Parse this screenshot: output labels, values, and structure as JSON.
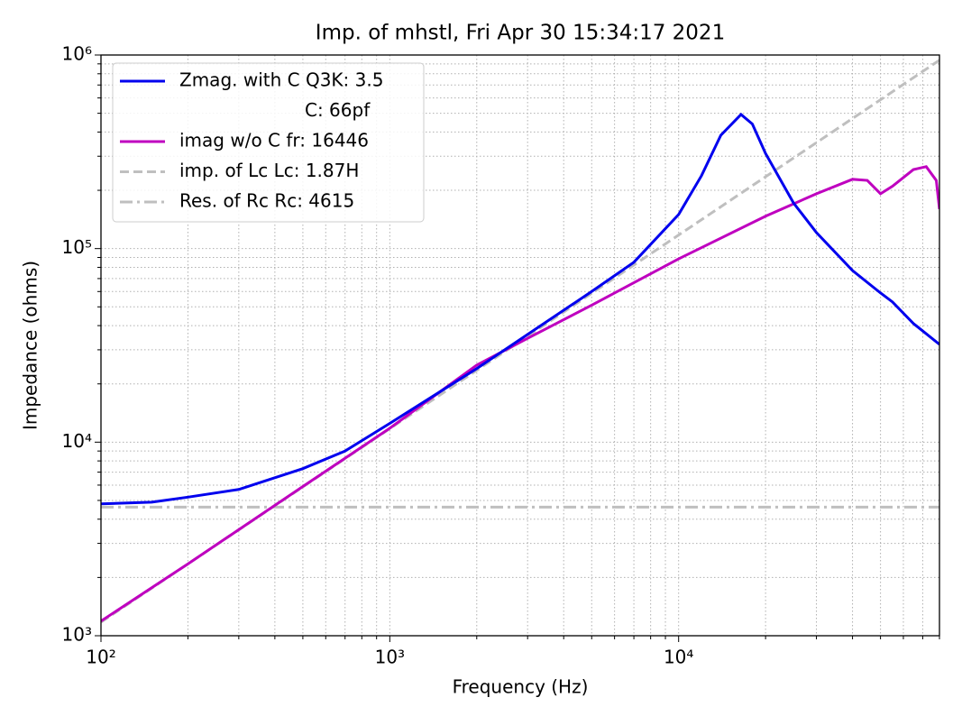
{
  "chart_data": {
    "type": "line",
    "title": "Imp. of mhstl, Fri Apr 30 15:34:17 2021",
    "x_label": "Frequency (Hz)",
    "y_label": "Impedance (ohms)",
    "xscale": "log",
    "yscale": "log",
    "grid": true,
    "legend_loc": "upper left",
    "xlim": [
      100,
      80000
    ],
    "ylim": [
      1000,
      1000000
    ],
    "xticks": [
      {
        "value": 100,
        "label": "10²"
      },
      {
        "value": 1000,
        "label": "10³"
      },
      {
        "value": 10000,
        "label": "10⁴"
      }
    ],
    "yticks": [
      {
        "value": 1000,
        "label": "10³"
      },
      {
        "value": 10000,
        "label": "10⁴"
      },
      {
        "value": 100000,
        "label": "10⁵"
      },
      {
        "value": 1000000,
        "label": "10⁶"
      }
    ],
    "xminorticks": [
      200,
      300,
      400,
      500,
      600,
      700,
      800,
      900,
      2000,
      3000,
      4000,
      5000,
      6000,
      7000,
      8000,
      9000,
      20000,
      30000,
      40000,
      50000,
      60000,
      70000,
      80000
    ],
    "yminorticks": [
      2000,
      3000,
      4000,
      5000,
      6000,
      7000,
      8000,
      9000,
      20000,
      30000,
      40000,
      50000,
      60000,
      70000,
      80000,
      90000,
      200000,
      300000,
      400000,
      500000,
      600000,
      700000,
      800000,
      900000
    ],
    "series": [
      {
        "name": "Zmag. with C Q3K: 3.5",
        "color": "#0000ee",
        "linestyle": "solid",
        "x": [
          100,
          150,
          200,
          300,
          500,
          700,
          1000,
          2000,
          3000,
          5000,
          7000,
          10000,
          12000,
          14000,
          16446,
          18000,
          20000,
          25000,
          30000,
          40000,
          50000,
          55000,
          65000,
          80000
        ],
        "values": [
          4800,
          4900,
          5200,
          5700,
          7300,
          9000,
          12500,
          24000,
          36000,
          60000,
          85000,
          150000,
          238000,
          385000,
          493000,
          440000,
          310000,
          172000,
          121000,
          77000,
          59000,
          53000,
          41000,
          32000
        ]
      },
      {
        "name": "C: 66pf",
        "color": "#ffffff",
        "linestyle": "none",
        "x": [],
        "values": []
      },
      {
        "name": "imag w/o C fr: 16446",
        "color": "#bf00bf",
        "linestyle": "solid",
        "x": [
          100,
          200,
          500,
          1000,
          2000,
          3000,
          5000,
          10000,
          20000,
          30000,
          40000,
          45000,
          50000,
          55000,
          65000,
          72000,
          78000,
          80000
        ],
        "values": [
          1190,
          2350,
          5900,
          11800,
          25000,
          34400,
          51000,
          88500,
          147000,
          192000,
          228000,
          225000,
          192000,
          210000,
          256000,
          265000,
          225000,
          160000
        ]
      },
      {
        "name": "imp. of Lc  Lc: 1.87H",
        "color": "#bfbfbf",
        "linestyle": "dashed",
        "x": [
          100,
          80000
        ],
        "values": [
          1175,
          940000
        ]
      },
      {
        "name": "Res. of Rc Rc: 4615",
        "color": "#bfbfbf",
        "linestyle": "dashdot",
        "x": [
          100,
          80000
        ],
        "values": [
          4615,
          4615
        ]
      }
    ]
  }
}
